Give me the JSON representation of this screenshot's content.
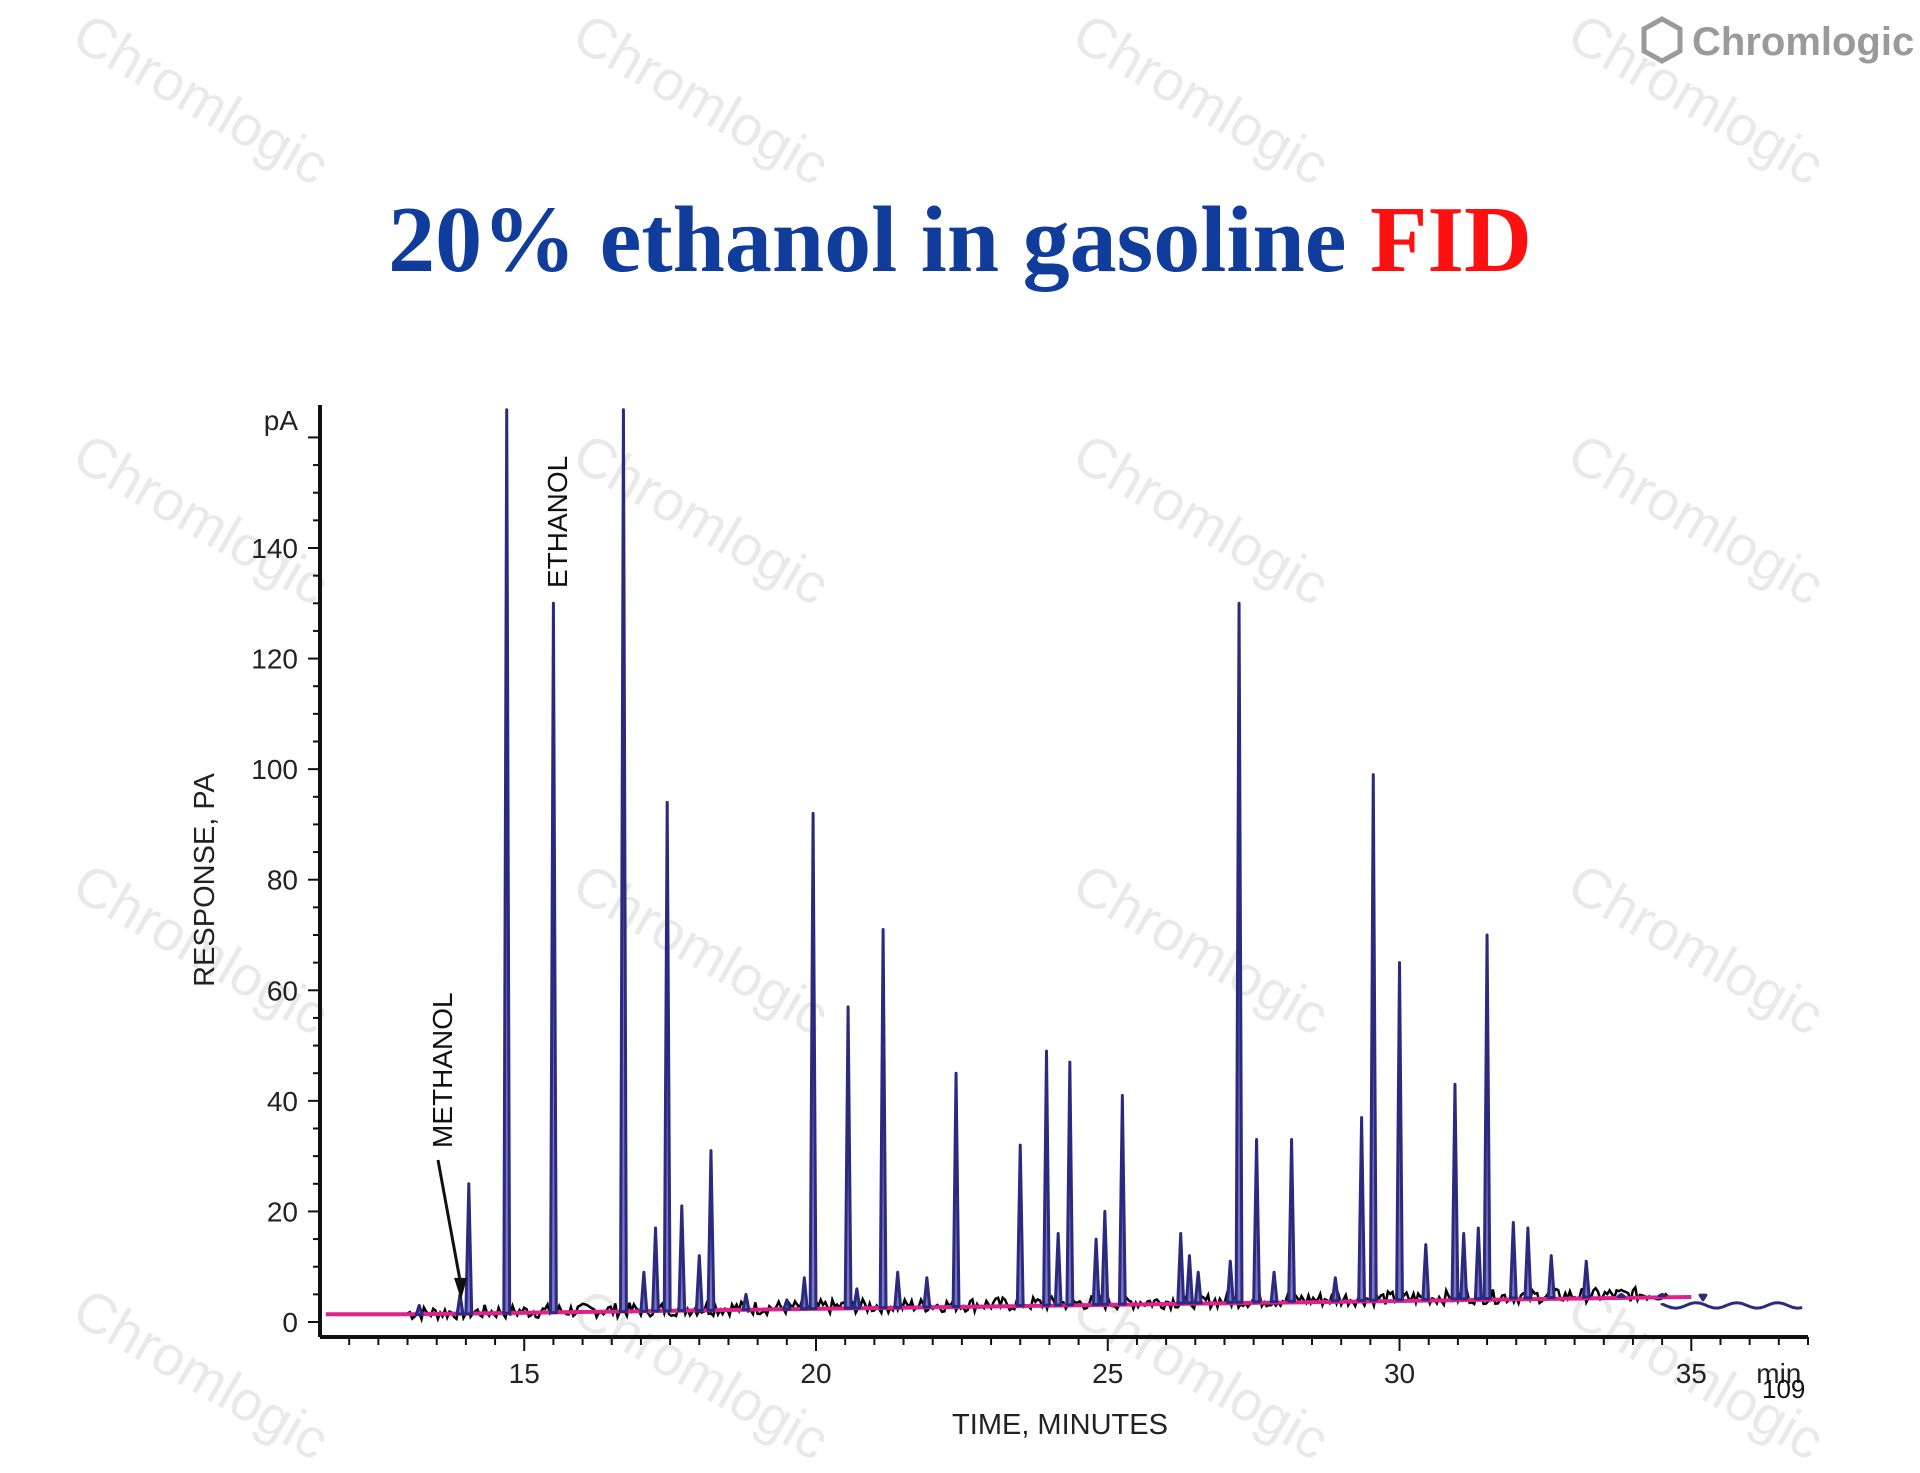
{
  "slide": {
    "title_main": "20% ethanol in gasoline",
    "title_highlight": "FID",
    "title_color": "#103d9c",
    "highlight_color": "#ff1010",
    "logo_text": "Chromlogic",
    "logo_icon": "hexagon-icon",
    "watermark_text": "Chromlogic",
    "page_number": "109"
  },
  "chart_data": {
    "type": "line",
    "title": "20% ethanol in gasoline FID",
    "xlabel": "TIME, MINUTES",
    "ylabel": "RESPONSE, PA",
    "y_unit_label": "pA",
    "x_unit_label": "min",
    "xlim": [
      11.5,
      37
    ],
    "ylim": [
      0,
      165
    ],
    "xticks": [
      15,
      20,
      25,
      30,
      35
    ],
    "yticks": [
      0,
      20,
      40,
      60,
      80,
      100,
      120,
      140
    ],
    "grid": false,
    "colors": {
      "main": "#2a2a7e",
      "fill": "#7b74c4",
      "baseline": "#e0208c",
      "noise": "#000000"
    },
    "annotations": [
      {
        "text": "METHANOL",
        "x": 13.9,
        "y": 4
      },
      {
        "text": "ETHANOL",
        "x": 15.5,
        "y": 130
      }
    ],
    "peaks": [
      {
        "t": 13.2,
        "h": 3
      },
      {
        "t": 13.9,
        "h": 5
      },
      {
        "t": 14.05,
        "h": 25
      },
      {
        "t": 14.7,
        "h": 165
      },
      {
        "t": 15.5,
        "h": 130
      },
      {
        "t": 16.7,
        "h": 165
      },
      {
        "t": 17.05,
        "h": 9
      },
      {
        "t": 17.25,
        "h": 17
      },
      {
        "t": 17.45,
        "h": 94
      },
      {
        "t": 17.7,
        "h": 21
      },
      {
        "t": 18.0,
        "h": 12
      },
      {
        "t": 18.2,
        "h": 31
      },
      {
        "t": 18.8,
        "h": 5
      },
      {
        "t": 19.5,
        "h": 4
      },
      {
        "t": 19.8,
        "h": 8
      },
      {
        "t": 19.95,
        "h": 92
      },
      {
        "t": 20.55,
        "h": 57
      },
      {
        "t": 20.7,
        "h": 6
      },
      {
        "t": 21.15,
        "h": 71
      },
      {
        "t": 21.4,
        "h": 9
      },
      {
        "t": 21.9,
        "h": 8
      },
      {
        "t": 22.4,
        "h": 45
      },
      {
        "t": 23.5,
        "h": 32
      },
      {
        "t": 23.95,
        "h": 49
      },
      {
        "t": 24.15,
        "h": 16
      },
      {
        "t": 24.35,
        "h": 47
      },
      {
        "t": 24.8,
        "h": 15
      },
      {
        "t": 24.95,
        "h": 20
      },
      {
        "t": 25.25,
        "h": 41
      },
      {
        "t": 26.25,
        "h": 16
      },
      {
        "t": 26.4,
        "h": 12
      },
      {
        "t": 26.55,
        "h": 9
      },
      {
        "t": 27.1,
        "h": 11
      },
      {
        "t": 27.25,
        "h": 130
      },
      {
        "t": 27.55,
        "h": 33
      },
      {
        "t": 27.85,
        "h": 9
      },
      {
        "t": 28.15,
        "h": 33
      },
      {
        "t": 28.9,
        "h": 8
      },
      {
        "t": 29.35,
        "h": 37
      },
      {
        "t": 29.55,
        "h": 99
      },
      {
        "t": 30.0,
        "h": 65
      },
      {
        "t": 30.45,
        "h": 14
      },
      {
        "t": 30.95,
        "h": 43
      },
      {
        "t": 31.1,
        "h": 16
      },
      {
        "t": 31.35,
        "h": 17
      },
      {
        "t": 31.5,
        "h": 70
      },
      {
        "t": 31.95,
        "h": 18
      },
      {
        "t": 32.2,
        "h": 17
      },
      {
        "t": 32.6,
        "h": 12
      },
      {
        "t": 33.2,
        "h": 11
      },
      {
        "t": 33.8,
        "h": 5
      },
      {
        "t": 34.5,
        "h": 5
      },
      {
        "t": 35.2,
        "h": 4
      }
    ]
  }
}
